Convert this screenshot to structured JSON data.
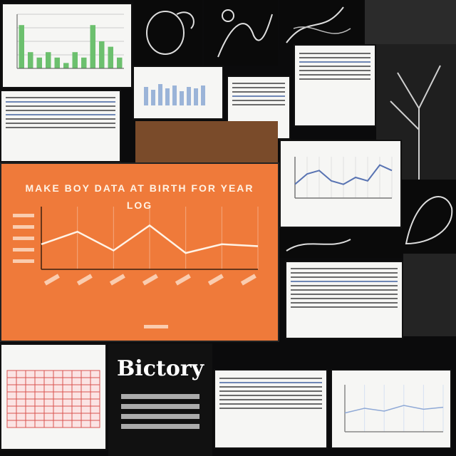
{
  "collage": {
    "poster_title": "MAKE BOY DATA AT BIRTH FOR YEAR",
    "poster_subtitle": "LOG",
    "book_title": "Bictory"
  },
  "colors": {
    "background": "#0b0b0c",
    "poster": "#ef7a3a",
    "bar": "#6cc06e",
    "line_blue": "#5873b2",
    "grid_red": "#d9534f"
  },
  "chart_data": [
    {
      "type": "bar",
      "categories": [
        "1",
        "2",
        "3",
        "4",
        "5",
        "6",
        "7",
        "8",
        "9",
        "10",
        "11",
        "12"
      ],
      "values": [
        8,
        3,
        2,
        3,
        2,
        1,
        3,
        2,
        8,
        5,
        4,
        2
      ],
      "ylim": [
        0,
        10
      ],
      "title": "",
      "xlabel": "",
      "ylabel": ""
    },
    {
      "type": "line",
      "x": [
        1,
        2,
        3,
        4,
        5,
        6,
        7
      ],
      "y": [
        4,
        6,
        3,
        7,
        2.6,
        4,
        3.7
      ],
      "ylim": [
        0,
        10
      ],
      "title": "",
      "xlabel": "",
      "ylabel": ""
    },
    {
      "type": "line",
      "x": [
        1,
        2,
        3,
        4,
        5,
        6,
        7,
        8,
        9
      ],
      "y": [
        2,
        3.5,
        4,
        2.5,
        2,
        3,
        2.5,
        4.8,
        4
      ],
      "ylim": [
        0,
        6
      ],
      "title": "",
      "xlabel": "",
      "ylabel": ""
    }
  ]
}
